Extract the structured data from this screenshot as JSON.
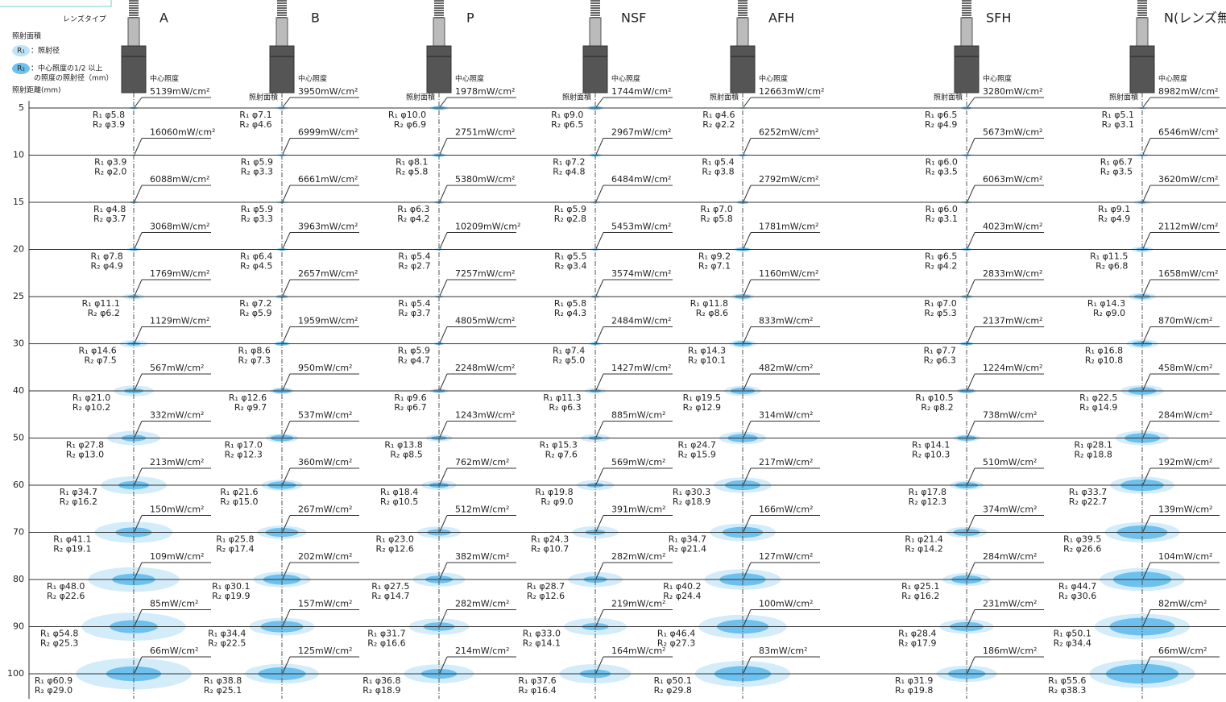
{
  "header": {
    "lens_type": "レンズタイプ",
    "area": "照射面積",
    "r1": "R₁",
    "r1_desc": "：照射径",
    "r2": "R₂",
    "r2_desc": [
      "：中心照度の1/2 以上",
      "の照度の照射径（mm）"
    ],
    "distance_label": "照射距離(mm)",
    "center": "中心照度",
    "unit": "mW/cm²",
    "r1_prefix": "R₁ φ",
    "r2_prefix": "R₂ φ"
  },
  "distances": [
    5,
    10,
    15,
    20,
    25,
    30,
    40,
    50,
    60,
    70,
    80,
    90,
    100
  ],
  "lenses": [
    {
      "name": "A",
      "rows": [
        [
          5139,
          "5.8",
          "3.9"
        ],
        [
          16060,
          "3.9",
          "2.0"
        ],
        [
          6088,
          "4.8",
          "3.7"
        ],
        [
          3068,
          "7.8",
          "4.9"
        ],
        [
          1769,
          "11.1",
          "6.2"
        ],
        [
          1129,
          "14.6",
          "7.5"
        ],
        [
          567,
          "21.0",
          "10.2"
        ],
        [
          332,
          "27.8",
          "13.0"
        ],
        [
          213,
          "34.7",
          "16.2"
        ],
        [
          150,
          "41.1",
          "19.1"
        ],
        [
          109,
          "48.0",
          "22.6"
        ],
        [
          85,
          "54.8",
          "25.3"
        ],
        [
          66,
          "60.9",
          "29.0"
        ]
      ]
    },
    {
      "name": "B",
      "rows": [
        [
          3950,
          "7.1",
          "4.6"
        ],
        [
          6999,
          "5.9",
          "3.3"
        ],
        [
          6661,
          "5.9",
          "3.3"
        ],
        [
          3963,
          "6.4",
          "4.5"
        ],
        [
          2657,
          "7.2",
          "5.9"
        ],
        [
          1959,
          "8.6",
          "7.3"
        ],
        [
          950,
          "12.6",
          "9.7"
        ],
        [
          537,
          "17.0",
          "12.3"
        ],
        [
          360,
          "21.6",
          "15.0"
        ],
        [
          267,
          "25.8",
          "17.4"
        ],
        [
          202,
          "30.1",
          "19.9"
        ],
        [
          157,
          "34.4",
          "22.5"
        ],
        [
          125,
          "38.8",
          "25.1"
        ]
      ]
    },
    {
      "name": "P",
      "rows": [
        [
          1978,
          "10.0",
          "6.9"
        ],
        [
          2751,
          "8.1",
          "5.8"
        ],
        [
          5380,
          "6.3",
          "4.2"
        ],
        [
          10209,
          "5.4",
          "2.7"
        ],
        [
          7257,
          "5.4",
          "3.7"
        ],
        [
          4805,
          "5.9",
          "4.7"
        ],
        [
          2248,
          "9.6",
          "6.7"
        ],
        [
          1243,
          "13.8",
          "8.5"
        ],
        [
          762,
          "18.4",
          "10.5"
        ],
        [
          512,
          "23.0",
          "12.6"
        ],
        [
          382,
          "27.5",
          "14.7"
        ],
        [
          282,
          "31.7",
          "16.6"
        ],
        [
          214,
          "36.8",
          "18.9"
        ]
      ]
    },
    {
      "name": "NSF",
      "rows": [
        [
          1744,
          "9.0",
          "6.5"
        ],
        [
          2967,
          "7.2",
          "4.8"
        ],
        [
          6484,
          "5.9",
          "2.8"
        ],
        [
          5453,
          "5.5",
          "3.4"
        ],
        [
          3574,
          "5.8",
          "4.3"
        ],
        [
          2484,
          "7.4",
          "5.0"
        ],
        [
          1427,
          "11.3",
          "6.3"
        ],
        [
          885,
          "15.3",
          "7.6"
        ],
        [
          569,
          "19.8",
          "9.0"
        ],
        [
          391,
          "24.3",
          "10.7"
        ],
        [
          282,
          "28.7",
          "12.6"
        ],
        [
          219,
          "33.0",
          "14.1"
        ],
        [
          164,
          "37.6",
          "16.4"
        ]
      ]
    },
    {
      "name": "AFH",
      "rows": [
        [
          12663,
          "4.6",
          "2.2"
        ],
        [
          6252,
          "5.4",
          "3.8"
        ],
        [
          2792,
          "7.0",
          "5.8"
        ],
        [
          1781,
          "9.2",
          "7.1"
        ],
        [
          1160,
          "11.8",
          "8.6"
        ],
        [
          833,
          "14.3",
          "10.1"
        ],
        [
          482,
          "19.5",
          "12.9"
        ],
        [
          314,
          "24.7",
          "15.9"
        ],
        [
          217,
          "30.3",
          "18.9"
        ],
        [
          166,
          "34.7",
          "21.4"
        ],
        [
          127,
          "40.2",
          "24.4"
        ],
        [
          100,
          "46.4",
          "27.3"
        ],
        [
          83,
          "50.1",
          "29.8"
        ]
      ]
    },
    {
      "name": "SFH",
      "rows": [
        [
          3280,
          "6.5",
          "4.9"
        ],
        [
          5673,
          "6.0",
          "3.5"
        ],
        [
          6063,
          "6.0",
          "3.1"
        ],
        [
          4023,
          "6.5",
          "4.2"
        ],
        [
          2833,
          "7.0",
          "5.3"
        ],
        [
          2137,
          "7.7",
          "6.3"
        ],
        [
          1224,
          "10.5",
          "8.2"
        ],
        [
          738,
          "14.1",
          "10.3"
        ],
        [
          510,
          "17.8",
          "12.3"
        ],
        [
          374,
          "21.4",
          "14.2"
        ],
        [
          284,
          "25.1",
          "16.2"
        ],
        [
          231,
          "28.4",
          "17.9"
        ],
        [
          186,
          "31.9",
          "19.8"
        ]
      ]
    },
    {
      "name": "N(レンズ無し)",
      "rows": [
        [
          8982,
          "5.1",
          "3.1"
        ],
        [
          6546,
          "6.7",
          "3.5"
        ],
        [
          3620,
          "9.1",
          "4.9"
        ],
        [
          2112,
          "11.5",
          "6.8"
        ],
        [
          1658,
          "14.3",
          "9.0"
        ],
        [
          870,
          "16.8",
          "10.8"
        ],
        [
          458,
          "22.5",
          "14.9"
        ],
        [
          284,
          "28.1",
          "18.8"
        ],
        [
          192,
          "33.7",
          "22.7"
        ],
        [
          139,
          "39.5",
          "26.6"
        ],
        [
          104,
          "44.7",
          "30.6"
        ],
        [
          82,
          "50.1",
          "34.4"
        ],
        [
          66,
          "55.6",
          "38.3"
        ]
      ]
    }
  ]
}
